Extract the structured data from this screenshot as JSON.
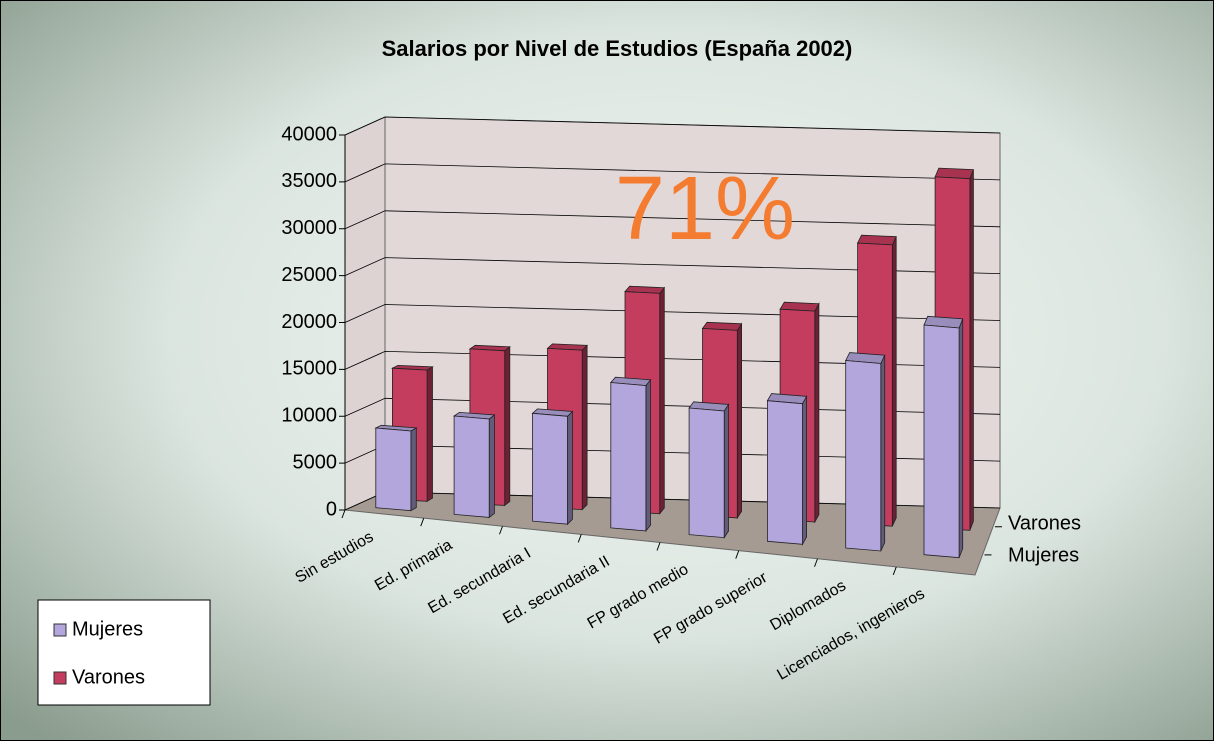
{
  "chart_data": {
    "type": "bar3d",
    "title": "Salarios por Nivel de Estudios (España 2002)",
    "annotation": "71%",
    "categories": [
      "Sin estudios",
      "Ed. primaria",
      "Ed. secundaria I",
      "Ed. secundaria II",
      "FP grado medio",
      "FP grado superior",
      "Diplomados",
      "Licenciados, ingenieros"
    ],
    "series": [
      {
        "name": "Mujeres",
        "color": "#b3a6dc",
        "values": [
          8500,
          10500,
          11500,
          15500,
          13500,
          15000,
          20000,
          24500
        ]
      },
      {
        "name": "Varones",
        "color": "#c43c5e",
        "values": [
          14000,
          16500,
          17000,
          23500,
          20000,
          22500,
          30000,
          37500
        ]
      }
    ],
    "ylim": [
      0,
      40000
    ],
    "yticks": [
      0,
      5000,
      10000,
      15000,
      20000,
      25000,
      30000,
      35000,
      40000
    ],
    "grid": true,
    "legend": "bottom-left"
  }
}
